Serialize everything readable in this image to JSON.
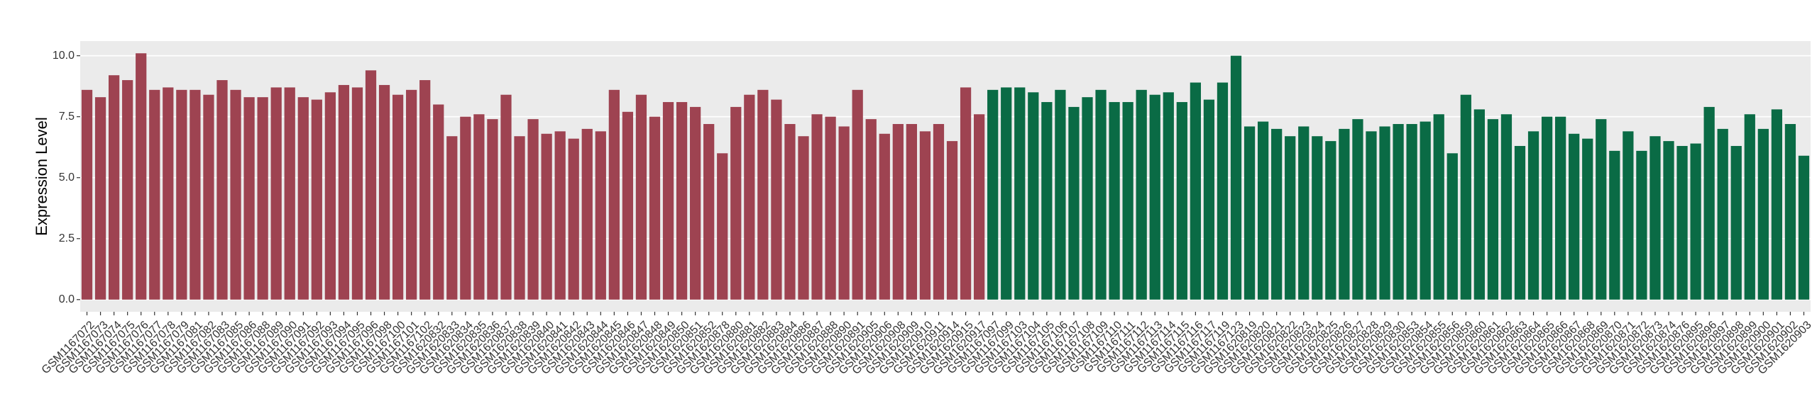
{
  "chart_data": {
    "type": "bar",
    "y_label": "Expression Level",
    "ylim": [
      -0.5,
      10.6
    ],
    "yticks": [
      {
        "value": 0,
        "label": "0.0"
      },
      {
        "value": 2.5,
        "label": "2.5"
      },
      {
        "value": 5,
        "label": "5.0"
      },
      {
        "value": 7.5,
        "label": "7.5"
      },
      {
        "value": 10,
        "label": "10.0"
      }
    ],
    "grid": true,
    "series": [
      {
        "color": "#9e4351",
        "categories": [
          "GSM1167072",
          "GSM1167073",
          "GSM1167074",
          "GSM1167075",
          "GSM1167076",
          "GSM1167077",
          "GSM1167078",
          "GSM1167079",
          "GSM1167081",
          "GSM1167082",
          "GSM1167083",
          "GSM1167085",
          "GSM1167086",
          "GSM1167088",
          "GSM1167089",
          "GSM1167090",
          "GSM1167091",
          "GSM1167092",
          "GSM1167093",
          "GSM1167094",
          "GSM1167095",
          "GSM1167096",
          "GSM1167098",
          "GSM1167100",
          "GSM1167101",
          "GSM1167102",
          "GSM1620832",
          "GSM1620833",
          "GSM1620834",
          "GSM1620835",
          "GSM1620836",
          "GSM1620837",
          "GSM1620838",
          "GSM1620839",
          "GSM1620840",
          "GSM1620841",
          "GSM1620842",
          "GSM1620843",
          "GSM1620844",
          "GSM1620845",
          "GSM1620846",
          "GSM1620847",
          "GSM1620848",
          "GSM1620849",
          "GSM1620850",
          "GSM1620851",
          "GSM1620852",
          "GSM1620878",
          "GSM1620880",
          "GSM1620881",
          "GSM1620882",
          "GSM1620883",
          "GSM1620884",
          "GSM1620886",
          "GSM1620887",
          "GSM1620888",
          "GSM1620890",
          "GSM1620891",
          "GSM1620905",
          "GSM1620906",
          "GSM1620908",
          "GSM1620909",
          "GSM1620910",
          "GSM1620911",
          "GSM1620914",
          "GSM1620915",
          "GSM1620917"
        ],
        "values": [
          8.6,
          8.3,
          9.2,
          9.0,
          10.1,
          8.6,
          8.7,
          8.6,
          8.6,
          8.4,
          9.0,
          8.6,
          8.3,
          8.3,
          8.7,
          8.7,
          8.3,
          8.2,
          8.5,
          8.8,
          8.7,
          9.4,
          8.8,
          8.4,
          8.6,
          9.0,
          8.0,
          6.7,
          7.5,
          7.6,
          7.4,
          8.4,
          6.7,
          7.4,
          6.8,
          6.9,
          6.6,
          7.0,
          6.9,
          8.6,
          7.7,
          8.4,
          7.5,
          8.1,
          8.1,
          7.9,
          7.2,
          6.0,
          7.9,
          8.4,
          8.6,
          8.2,
          7.2,
          6.7,
          7.6,
          7.5,
          7.1,
          8.6,
          7.4,
          6.8,
          7.2,
          7.2,
          6.9,
          7.2,
          6.5,
          8.7,
          7.6
        ]
      },
      {
        "color": "#0a6b45",
        "categories": [
          "GSM1167097",
          "GSM1167099",
          "GSM1167103",
          "GSM1167104",
          "GSM1167105",
          "GSM1167106",
          "GSM1167107",
          "GSM1167108",
          "GSM1167109",
          "GSM1167110",
          "GSM1167111",
          "GSM1167112",
          "GSM1167113",
          "GSM1167114",
          "GSM1167115",
          "GSM1167116",
          "GSM1167117",
          "GSM1167119",
          "GSM1167123",
          "GSM1620819",
          "GSM1620820",
          "GSM1620821",
          "GSM1620822",
          "GSM1620823",
          "GSM1620824",
          "GSM1620825",
          "GSM1620826",
          "GSM1620827",
          "GSM1620828",
          "GSM1620829",
          "GSM1620830",
          "GSM1620853",
          "GSM1620854",
          "GSM1620855",
          "GSM1620856",
          "GSM1620859",
          "GSM1620860",
          "GSM1620861",
          "GSM1620862",
          "GSM1620863",
          "GSM1620864",
          "GSM1620865",
          "GSM1620866",
          "GSM1620867",
          "GSM1620868",
          "GSM1620869",
          "GSM1620870",
          "GSM1620871",
          "GSM1620872",
          "GSM1620873",
          "GSM1620874",
          "GSM1620876",
          "GSM1620895",
          "GSM1620896",
          "GSM1620897",
          "GSM1620898",
          "GSM1620899",
          "GSM1620900",
          "GSM1620901",
          "GSM1620902",
          "GSM1620903"
        ],
        "values": [
          8.6,
          8.7,
          8.7,
          8.5,
          8.1,
          8.6,
          7.9,
          8.3,
          8.6,
          8.1,
          8.1,
          8.6,
          8.4,
          8.5,
          8.1,
          8.9,
          8.2,
          8.9,
          10.0,
          7.1,
          7.3,
          7.0,
          6.7,
          7.1,
          6.7,
          6.5,
          7.0,
          7.4,
          6.9,
          7.1,
          7.2,
          7.2,
          7.3,
          7.6,
          6.0,
          8.4,
          7.8,
          7.4,
          7.6,
          6.3,
          6.9,
          7.5,
          7.5,
          6.8,
          6.6,
          7.4,
          6.1,
          6.9,
          6.1,
          6.7,
          6.5,
          6.3,
          6.4,
          7.9,
          7.0,
          6.3,
          7.6,
          7.0,
          7.8,
          7.2,
          5.9
        ]
      }
    ]
  }
}
